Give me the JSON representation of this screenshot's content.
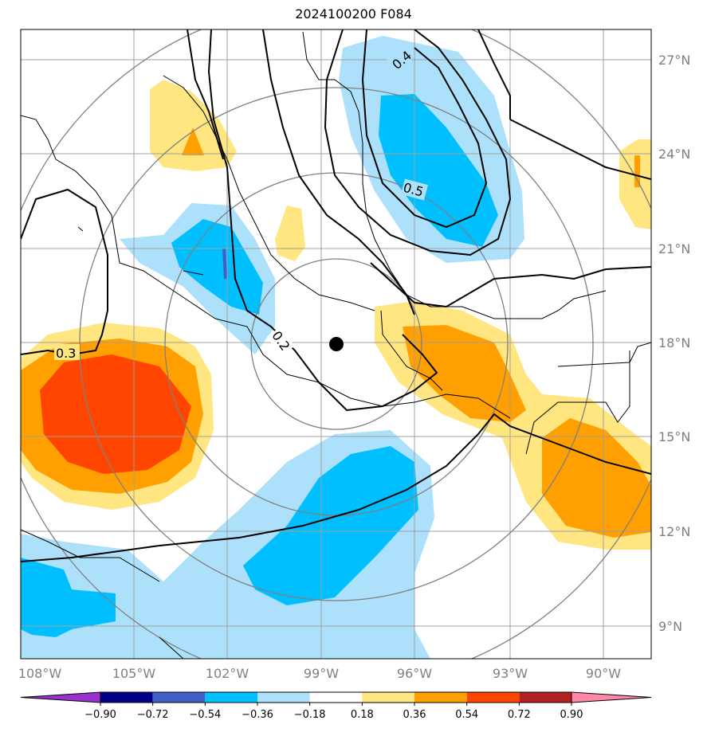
{
  "title": "2024100200 F084",
  "map": {
    "lon_ticks": [
      "108°W",
      "105°W",
      "102°W",
      "99°W",
      "96°W",
      "93°W",
      "90°W"
    ],
    "lat_ticks": [
      "27°N",
      "24°N",
      "21°N",
      "18°N",
      "15°N",
      "12°N",
      "9°N"
    ],
    "grid": true,
    "center_marker": "black dot at 98.5°W, 18°N",
    "contour_labels": [
      "0.4",
      "0.5",
      "0.2",
      "0.3"
    ]
  },
  "colorbar": {
    "ticks": [
      "−0.90",
      "−0.72",
      "−0.54",
      "−0.36",
      "−0.18",
      "0.18",
      "0.36",
      "0.54",
      "0.72",
      "0.90"
    ],
    "colors": [
      "#9932CC",
      "#00008B",
      "#4060C8",
      "#00BFFF",
      "#ADE0FA",
      "#FFFFFF",
      "#FFE680",
      "#FFA000",
      "#FF4500",
      "#B22222",
      "#FF88AA"
    ],
    "extend": "both"
  }
}
